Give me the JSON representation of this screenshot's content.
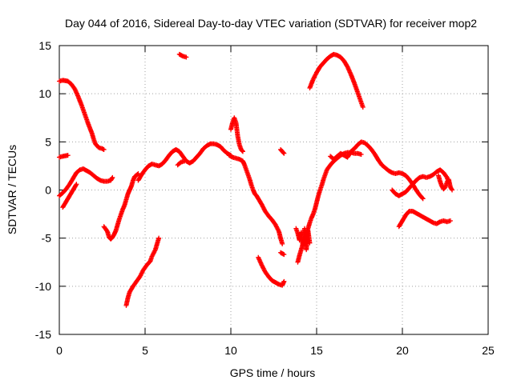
{
  "chart_data": {
    "type": "scatter",
    "title": "Day 044 of 2016, Sidereal Day-to-day VTEC variation (SDTVAR) for receiver mop2",
    "xlabel": "GPS time / hours",
    "ylabel": "SDTVAR / TECUs",
    "xlim": [
      0,
      25
    ],
    "ylim": [
      -15,
      15
    ],
    "xticks": [
      "0",
      "5",
      "10",
      "15",
      "20",
      "25"
    ],
    "yticks": [
      "-15",
      "-10",
      "-5",
      "0",
      "5",
      "10",
      "15"
    ],
    "grid": true,
    "legend": "none",
    "marker": "+",
    "color": "#ff0000",
    "series": [
      {
        "points": [
          [
            0.0,
            3.4
          ],
          [
            0.2,
            3.5
          ],
          [
            0.5,
            3.6
          ]
        ]
      },
      {
        "points": [
          [
            0.0,
            11.3
          ],
          [
            0.2,
            11.4
          ],
          [
            0.5,
            11.3
          ],
          [
            0.7,
            11.0
          ],
          [
            0.9,
            10.5
          ],
          [
            1.1,
            9.7
          ],
          [
            1.3,
            8.8
          ],
          [
            1.5,
            7.8
          ],
          [
            1.7,
            6.8
          ],
          [
            1.9,
            5.9
          ],
          [
            2.0,
            5.3
          ],
          [
            2.1,
            4.8
          ],
          [
            2.3,
            4.4
          ],
          [
            2.5,
            4.3
          ],
          [
            2.6,
            4.2
          ]
        ]
      },
      {
        "points": [
          [
            0.0,
            -0.6
          ],
          [
            0.2,
            -0.3
          ],
          [
            0.4,
            0.1
          ],
          [
            0.6,
            0.6
          ],
          [
            0.8,
            1.2
          ],
          [
            1.0,
            1.8
          ],
          [
            1.2,
            2.1
          ],
          [
            1.4,
            2.2
          ],
          [
            1.6,
            2.0
          ],
          [
            1.8,
            1.8
          ],
          [
            2.0,
            1.5
          ],
          [
            2.2,
            1.2
          ],
          [
            2.4,
            1.0
          ],
          [
            2.6,
            0.9
          ],
          [
            2.8,
            0.9
          ],
          [
            3.0,
            1.0
          ],
          [
            3.1,
            1.3
          ]
        ]
      },
      {
        "points": [
          [
            0.2,
            -1.8
          ],
          [
            0.4,
            -1.2
          ],
          [
            0.6,
            -0.6
          ],
          [
            0.8,
            0.0
          ],
          [
            1.0,
            0.6
          ]
        ]
      },
      {
        "points": [
          [
            2.6,
            -3.8
          ],
          [
            2.8,
            -4.3
          ],
          [
            2.9,
            -4.9
          ],
          [
            3.0,
            -5.1
          ],
          [
            3.1,
            -4.9
          ],
          [
            3.2,
            -4.6
          ],
          [
            3.3,
            -4.2
          ],
          [
            3.4,
            -3.6
          ],
          [
            3.5,
            -3.0
          ],
          [
            3.6,
            -2.5
          ],
          [
            3.7,
            -2.0
          ],
          [
            3.8,
            -1.6
          ],
          [
            3.9,
            -1.0
          ],
          [
            4.0,
            -0.4
          ],
          [
            4.1,
            0.0
          ],
          [
            4.2,
            0.4
          ],
          [
            4.3,
            1.0
          ],
          [
            4.4,
            1.4
          ],
          [
            4.6,
            1.7
          ]
        ]
      },
      {
        "points": [
          [
            3.9,
            -12.0
          ],
          [
            4.0,
            -11.2
          ],
          [
            4.1,
            -10.6
          ],
          [
            4.3,
            -10.0
          ],
          [
            4.5,
            -9.5
          ],
          [
            4.7,
            -9.0
          ],
          [
            4.9,
            -8.3
          ],
          [
            5.1,
            -7.8
          ],
          [
            5.3,
            -7.4
          ],
          [
            5.4,
            -6.9
          ],
          [
            5.6,
            -6.2
          ],
          [
            5.7,
            -5.6
          ],
          [
            5.8,
            -5.0
          ]
        ]
      },
      {
        "points": [
          [
            4.6,
            1.0
          ],
          [
            4.8,
            1.6
          ],
          [
            5.0,
            2.1
          ],
          [
            5.2,
            2.5
          ],
          [
            5.4,
            2.7
          ],
          [
            5.6,
            2.6
          ],
          [
            5.8,
            2.5
          ],
          [
            6.0,
            2.7
          ],
          [
            6.2,
            3.1
          ],
          [
            6.4,
            3.6
          ],
          [
            6.6,
            4.0
          ],
          [
            6.8,
            4.2
          ],
          [
            7.0,
            4.0
          ],
          [
            7.2,
            3.5
          ],
          [
            7.4,
            3.0
          ],
          [
            7.6,
            2.8
          ],
          [
            7.8,
            3.0
          ],
          [
            8.0,
            3.4
          ],
          [
            8.2,
            3.8
          ],
          [
            8.4,
            4.3
          ],
          [
            8.6,
            4.6
          ],
          [
            8.8,
            4.8
          ],
          [
            9.0,
            4.8
          ],
          [
            9.2,
            4.7
          ],
          [
            9.4,
            4.5
          ],
          [
            9.6,
            4.1
          ],
          [
            9.8,
            3.8
          ],
          [
            10.0,
            3.6
          ]
        ]
      },
      {
        "points": [
          [
            6.9,
            2.6
          ],
          [
            7.1,
            2.9
          ],
          [
            7.3,
            3.0
          ]
        ]
      },
      {
        "points": [
          [
            7.0,
            14.1
          ],
          [
            7.2,
            13.9
          ],
          [
            7.4,
            13.8
          ]
        ]
      },
      {
        "points": [
          [
            10.0,
            6.3
          ],
          [
            10.1,
            7.0
          ],
          [
            10.2,
            7.5
          ],
          [
            10.3,
            7.0
          ],
          [
            10.4,
            5.6
          ],
          [
            10.5,
            4.7
          ],
          [
            10.6,
            4.2
          ],
          [
            10.7,
            4.0
          ]
        ]
      },
      {
        "points": [
          [
            9.9,
            3.6
          ],
          [
            10.1,
            3.4
          ],
          [
            10.3,
            3.3
          ],
          [
            10.5,
            3.2
          ],
          [
            10.7,
            3.0
          ],
          [
            10.8,
            2.6
          ],
          [
            10.9,
            2.1
          ],
          [
            11.0,
            1.6
          ],
          [
            11.1,
            1.1
          ],
          [
            11.2,
            0.5
          ],
          [
            11.3,
            0.0
          ],
          [
            11.4,
            -0.4
          ],
          [
            11.5,
            -0.6
          ],
          [
            11.6,
            -0.9
          ],
          [
            11.8,
            -1.5
          ],
          [
            12.0,
            -2.2
          ],
          [
            12.2,
            -2.7
          ],
          [
            12.4,
            -3.1
          ],
          [
            12.6,
            -3.6
          ],
          [
            12.8,
            -4.3
          ],
          [
            12.9,
            -5.0
          ],
          [
            13.0,
            -5.6
          ]
        ]
      },
      {
        "points": [
          [
            11.6,
            -7.0
          ],
          [
            11.8,
            -7.8
          ],
          [
            12.0,
            -8.5
          ],
          [
            12.2,
            -9.0
          ],
          [
            12.4,
            -9.4
          ],
          [
            12.6,
            -9.6
          ],
          [
            12.8,
            -9.8
          ],
          [
            13.0,
            -9.9
          ],
          [
            13.1,
            -9.5
          ]
        ]
      },
      {
        "points": [
          [
            12.9,
            4.2
          ],
          [
            13.1,
            3.8
          ]
        ]
      },
      {
        "points": [
          [
            12.9,
            -6.5
          ],
          [
            13.1,
            -6.7
          ]
        ]
      },
      {
        "points": [
          [
            13.8,
            -4.0
          ],
          [
            13.9,
            -4.5
          ],
          [
            14.0,
            -5.2
          ],
          [
            14.1,
            -4.4
          ],
          [
            14.2,
            -5.8
          ],
          [
            14.3,
            -4.0
          ],
          [
            14.4,
            -6.2
          ],
          [
            14.5,
            -4.2
          ],
          [
            14.6,
            -5.5
          ]
        ]
      },
      {
        "points": [
          [
            13.9,
            -7.5
          ],
          [
            14.0,
            -6.8
          ],
          [
            14.1,
            -6.2
          ],
          [
            14.2,
            -5.6
          ],
          [
            14.3,
            -5.1
          ],
          [
            14.4,
            -4.6
          ],
          [
            14.5,
            -4.0
          ],
          [
            14.6,
            -3.4
          ],
          [
            14.7,
            -2.9
          ],
          [
            14.8,
            -2.5
          ],
          [
            14.9,
            -2.0
          ],
          [
            15.0,
            -1.3
          ],
          [
            15.1,
            -0.6
          ],
          [
            15.2,
            0.0
          ],
          [
            15.3,
            0.5
          ],
          [
            15.4,
            1.1
          ],
          [
            15.5,
            1.6
          ],
          [
            15.6,
            2.1
          ],
          [
            15.8,
            2.6
          ],
          [
            16.0,
            3.0
          ],
          [
            16.2,
            3.3
          ],
          [
            16.4,
            3.6
          ],
          [
            16.6,
            3.8
          ],
          [
            16.8,
            3.9
          ],
          [
            17.0,
            3.9
          ],
          [
            17.2,
            3.8
          ],
          [
            17.4,
            3.8
          ],
          [
            17.6,
            3.7
          ]
        ]
      },
      {
        "points": [
          [
            15.8,
            3.5
          ],
          [
            16.0,
            3.2
          ],
          [
            16.2,
            3.5
          ],
          [
            16.4,
            3.8
          ],
          [
            16.6,
            3.6
          ],
          [
            16.8,
            3.4
          ],
          [
            17.0,
            4.0
          ],
          [
            17.2,
            4.3
          ],
          [
            17.4,
            4.7
          ],
          [
            17.6,
            5.0
          ],
          [
            17.8,
            4.9
          ],
          [
            18.0,
            4.6
          ],
          [
            18.2,
            4.2
          ],
          [
            18.4,
            3.7
          ],
          [
            18.6,
            3.1
          ],
          [
            18.8,
            2.6
          ],
          [
            19.0,
            2.3
          ],
          [
            19.2,
            2.0
          ],
          [
            19.4,
            1.8
          ],
          [
            19.6,
            1.7
          ],
          [
            19.8,
            1.8
          ],
          [
            20.0,
            1.7
          ],
          [
            20.2,
            1.5
          ],
          [
            20.4,
            1.1
          ],
          [
            20.6,
            0.6
          ],
          [
            20.8,
            0.0
          ],
          [
            21.0,
            -0.5
          ],
          [
            21.2,
            -0.9
          ]
        ]
      },
      {
        "points": [
          [
            14.6,
            10.6
          ],
          [
            14.8,
            11.5
          ],
          [
            15.0,
            12.2
          ],
          [
            15.2,
            12.8
          ],
          [
            15.4,
            13.2
          ],
          [
            15.6,
            13.6
          ],
          [
            15.8,
            13.9
          ],
          [
            16.0,
            14.1
          ],
          [
            16.2,
            14.0
          ],
          [
            16.4,
            13.8
          ],
          [
            16.6,
            13.4
          ],
          [
            16.8,
            12.8
          ],
          [
            17.0,
            12.0
          ],
          [
            17.2,
            11.1
          ],
          [
            17.4,
            10.1
          ],
          [
            17.6,
            9.1
          ],
          [
            17.7,
            8.6
          ]
        ]
      },
      {
        "points": [
          [
            19.4,
            0.0
          ],
          [
            19.6,
            -0.4
          ],
          [
            19.8,
            -0.6
          ],
          [
            20.0,
            -0.4
          ],
          [
            20.2,
            -0.2
          ],
          [
            20.4,
            0.2
          ],
          [
            20.6,
            0.6
          ],
          [
            20.8,
            1.0
          ],
          [
            21.0,
            1.3
          ],
          [
            21.2,
            1.4
          ],
          [
            21.4,
            1.3
          ],
          [
            21.6,
            1.4
          ],
          [
            21.8,
            1.6
          ],
          [
            22.0,
            1.9
          ],
          [
            22.2,
            2.1
          ],
          [
            22.4,
            1.8
          ],
          [
            22.6,
            1.3
          ],
          [
            22.7,
            0.8
          ]
        ]
      },
      {
        "points": [
          [
            19.8,
            -3.8
          ],
          [
            20.0,
            -3.2
          ],
          [
            20.2,
            -2.6
          ],
          [
            20.4,
            -2.2
          ],
          [
            20.6,
            -2.2
          ],
          [
            20.8,
            -2.4
          ],
          [
            21.0,
            -2.6
          ],
          [
            21.2,
            -2.8
          ],
          [
            21.4,
            -3.0
          ],
          [
            21.6,
            -3.2
          ],
          [
            21.8,
            -3.4
          ],
          [
            22.0,
            -3.5
          ],
          [
            22.2,
            -3.3
          ],
          [
            22.4,
            -3.2
          ],
          [
            22.6,
            -3.3
          ],
          [
            22.8,
            -3.2
          ]
        ]
      },
      {
        "points": [
          [
            22.1,
            1.5
          ],
          [
            22.2,
            0.9
          ],
          [
            22.3,
            0.4
          ],
          [
            22.4,
            0.1
          ],
          [
            22.5,
            0.3
          ],
          [
            22.6,
            0.8
          ],
          [
            22.7,
            1.1
          ],
          [
            22.8,
            0.3
          ],
          [
            22.9,
            0.0
          ]
        ]
      }
    ]
  }
}
